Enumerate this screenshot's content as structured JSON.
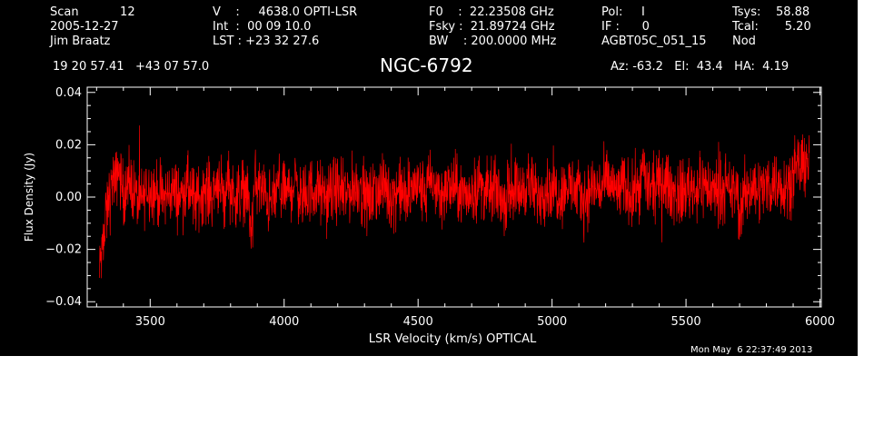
{
  "header": {
    "col1": [
      "Scan           12",
      "2005-12-27",
      "Jim Braatz"
    ],
    "col2": [
      "V    :     4638.0 OPTI-LSR",
      "Int  :  00 09 10.0",
      "LST : +23 32 27.6"
    ],
    "col3": [
      "F0    :  22.23508 GHz",
      "Fsky :  21.89724 GHz",
      "BW    : 200.0000 MHz"
    ],
    "col4": [
      "Pol:     I",
      "IF :      0",
      "AGBT05C_051_15"
    ],
    "col5": [
      "Tsys:    58.88",
      "Tcal:       5.20",
      "Nod"
    ],
    "coords": "19 20 57.41   +43 07 57.0",
    "source": "NGC-6792",
    "azel": "Az: -63.2   El:  43.4   HA:  4.19"
  },
  "timestamp": "Mon May  6 22:37:49 2013",
  "colors": {
    "background": "#000000",
    "trace": "#ff0000",
    "axes": "#ffffff"
  },
  "chart_data": {
    "type": "line",
    "title": "NGC-6792",
    "xlabel": "LSR Velocity (km/s) OPTICAL",
    "ylabel": "Flux Density (Jy)",
    "xlim": [
      3265,
      6005
    ],
    "ylim": [
      -0.042,
      0.042
    ],
    "xticks": [
      3500,
      4000,
      4500,
      5000,
      5500,
      6000
    ],
    "xtick_labels": [
      "3500",
      "4000",
      "4500",
      "5000",
      "5500",
      "6000"
    ],
    "yticks": [
      -0.04,
      -0.02,
      0.0,
      0.02,
      0.04
    ],
    "ytick_labels": [
      "−0.04",
      "−0.02",
      "0.00",
      "0.02",
      "0.04"
    ],
    "grid": false,
    "series": [
      {
        "x": [
          3310,
          3315,
          3320,
          3325,
          3330,
          3335,
          3340,
          3345,
          3350,
          3360,
          3370,
          3380,
          3400,
          3430,
          3460,
          3490,
          3520,
          3550,
          3580,
          3610,
          3640,
          3670,
          3700,
          3730,
          3760,
          3780,
          3790,
          3800,
          3830,
          3860,
          3870,
          3880,
          3890,
          3920,
          3950,
          3980,
          4010,
          4040,
          4070,
          4100,
          4130,
          4160,
          4190,
          4220,
          4250,
          4280,
          4310,
          4340,
          4370,
          4400,
          4430,
          4460,
          4490,
          4520,
          4550,
          4580,
          4610,
          4640,
          4670,
          4700,
          4730,
          4760,
          4790,
          4820,
          4850,
          4880,
          4910,
          4940,
          4970,
          5000,
          5030,
          5060,
          5090,
          5120,
          5150,
          5180,
          5210,
          5240,
          5270,
          5300,
          5330,
          5340,
          5360,
          5390,
          5420,
          5450,
          5480,
          5510,
          5540,
          5570,
          5600,
          5630,
          5660,
          5690,
          5700,
          5720,
          5750,
          5780,
          5810,
          5840,
          5870,
          5900,
          5920,
          5940,
          5950,
          5955,
          5960
        ],
        "y": [
          -0.032,
          -0.022,
          -0.024,
          -0.012,
          -0.018,
          -0.004,
          -0.008,
          0.002,
          -0.002,
          0.008,
          0.004,
          0.012,
          0.001,
          0.005,
          -0.003,
          0.004,
          0.002,
          -0.001,
          0.003,
          0.0,
          0.004,
          -0.002,
          0.003,
          0.001,
          0.008,
          -0.004,
          0.012,
          0.002,
          0.0,
          0.005,
          -0.008,
          -0.012,
          0.006,
          0.002,
          -0.003,
          0.004,
          0.001,
          0.006,
          -0.002,
          0.003,
          0.002,
          -0.001,
          0.004,
          0.0,
          0.003,
          0.005,
          -0.002,
          0.002,
          0.004,
          0.0,
          0.003,
          -0.001,
          0.005,
          0.002,
          0.006,
          0.001,
          0.003,
          0.004,
          0.0,
          0.002,
          0.005,
          0.001,
          0.003,
          -0.002,
          0.004,
          0.002,
          0.006,
          0.0,
          0.003,
          0.004,
          0.001,
          0.005,
          0.002,
          -0.001,
          0.004,
          0.003,
          0.006,
          0.002,
          0.004,
          0.001,
          0.005,
          0.012,
          0.002,
          0.004,
          0.006,
          0.002,
          0.001,
          0.004,
          0.003,
          0.005,
          0.002,
          0.004,
          0.001,
          0.003,
          -0.008,
          0.002,
          0.004,
          0.003,
          0.005,
          0.006,
          0.004,
          0.008,
          0.012,
          0.01,
          0.018,
          0.012,
          0.016
        ]
      }
    ]
  }
}
